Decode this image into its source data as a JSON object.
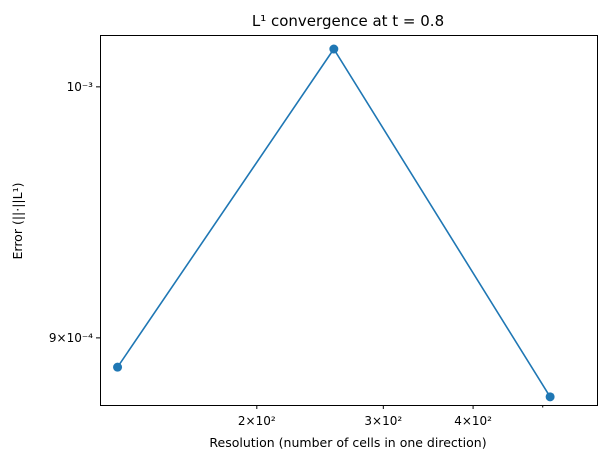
{
  "chart_data": {
    "type": "line",
    "title": "L¹ convergence at t = 0.8",
    "xlabel": "Resolution (number of cells in one direction)",
    "ylabel": "Error (||·||L¹)",
    "xscale": "log",
    "yscale": "log",
    "xlim": [
      121,
      595
    ],
    "ylim": [
      0.000875,
      0.001022
    ],
    "grid": false,
    "x": [
      128,
      256,
      512
    ],
    "series": [
      {
        "name": "",
        "values": [
          0.000889,
          0.001016,
          0.000878
        ]
      }
    ],
    "x_ticks": [
      {
        "value": 200,
        "label": "2×10²"
      },
      {
        "value": 300,
        "label": "3×10²"
      },
      {
        "value": 400,
        "label": "4×10²"
      }
    ],
    "x_minor_ticks": [
      500
    ],
    "y_ticks": [
      {
        "value": 0.001,
        "label": "10⁻³"
      },
      {
        "value": 0.0009,
        "label": "9×10⁻⁴"
      }
    ],
    "color": "#1f77b4"
  }
}
